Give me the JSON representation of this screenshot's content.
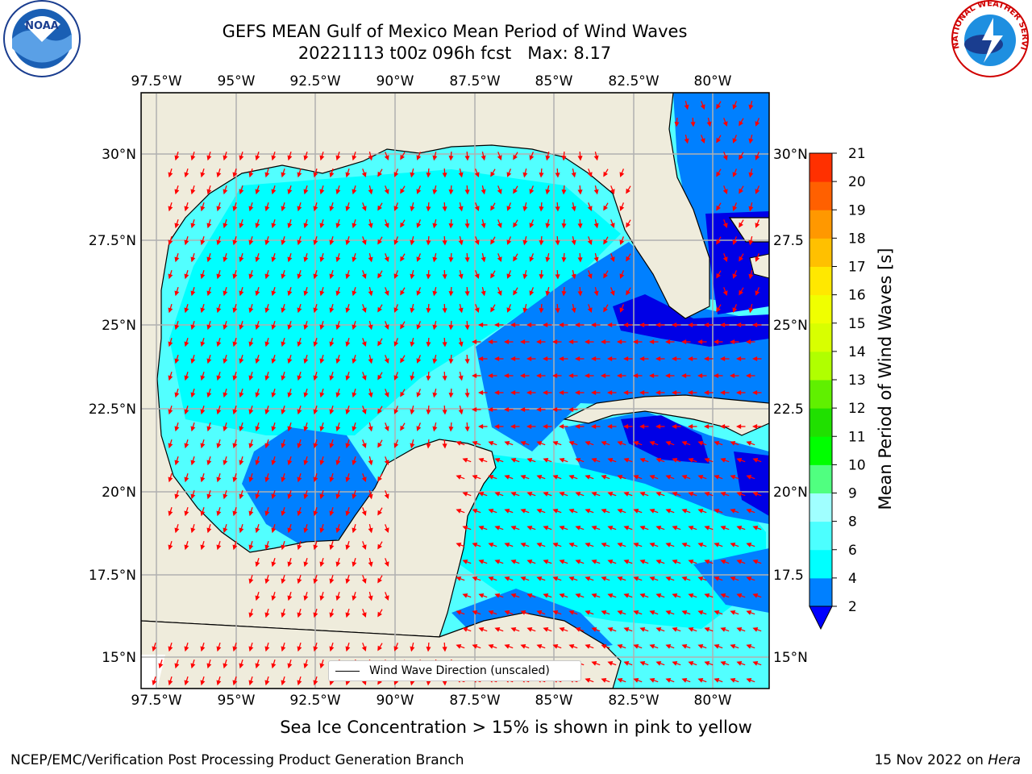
{
  "header": {
    "title_line1": "GEFS MEAN Gulf of Mexico Mean Period of Wind Waves",
    "title_line2": "20221113 t00z 096h fcst   Max: 8.17"
  },
  "map": {
    "lon_labels": [
      "97.5°W",
      "95°W",
      "92.5°W",
      "90°W",
      "87.5°W",
      "85°W",
      "82.5°W",
      "80°W"
    ],
    "lat_labels_left": [
      "30°N",
      "27.5°N",
      "25°N",
      "22.5°N",
      "20°N",
      "17.5°N",
      "15°N"
    ],
    "lat_labels_right": [
      "30°N",
      "27.5",
      "25°N",
      "22.5",
      "20°N",
      "17.5",
      "15°N"
    ],
    "legend_label": "Wind Wave Direction (unscaled)",
    "colors": {
      "land": "#efecdc",
      "ocean_light": "#52ffff",
      "ocean_cyan": "#00ffff",
      "ocean_mid": "#0080ff",
      "ocean_deep": "#0000e6",
      "arrow": "#ff0000"
    }
  },
  "colorbar": {
    "title": "Mean Period of Wind Waves [s]",
    "ticks": [
      "2",
      "4",
      "6",
      "8",
      "9",
      "10",
      "11",
      "12",
      "13",
      "14",
      "15",
      "16",
      "17",
      "18",
      "19",
      "20",
      "21"
    ],
    "colors": [
      "#0080ff",
      "#00ffff",
      "#4cffff",
      "#a0ffff",
      "#50ff80",
      "#00ff00",
      "#20e000",
      "#60f000",
      "#b0ff00",
      "#d8ff00",
      "#f0ff00",
      "#ffe800",
      "#ffc000",
      "#ff9800",
      "#ff6000",
      "#ff3000",
      "#ff0000"
    ],
    "under_color": "#0000ff"
  },
  "caption": "Sea Ice Concentration > 15% is shown in pink to yellow",
  "footer": {
    "left": "NCEP/EMC/Verification Post Processing Product Generation Branch",
    "right_date": "15 Nov 2022 on",
    "right_machine": "Hera"
  },
  "logos": {
    "noaa_text": "NOAA",
    "nws_text": "NATIONAL WEATHER SERVICE"
  }
}
